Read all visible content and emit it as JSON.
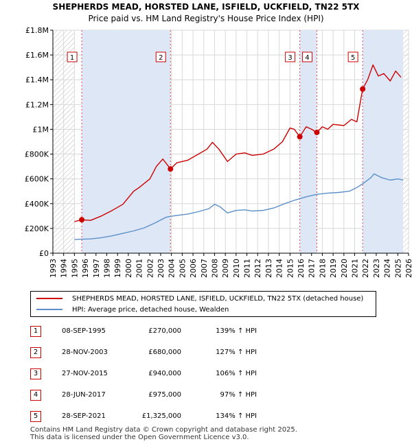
{
  "title": {
    "line1": "SHEPHERDS MEAD, HORSTED LANE, ISFIELD, UCKFIELD, TN22 5TX",
    "line2": "Price paid vs. HM Land Registry's House Price Index (HPI)"
  },
  "chart_data": {
    "type": "line",
    "title": "SHEPHERDS MEAD, HORSTED LANE, ISFIELD, UCKFIELD, TN22 5TX",
    "subtitle": "Price paid vs. HM Land Registry's House Price Index (HPI)",
    "xlim": [
      1993,
      2026
    ],
    "ylim": [
      0,
      1800000
    ],
    "y_ticks": [
      0,
      200000,
      400000,
      600000,
      800000,
      1000000,
      1200000,
      1400000,
      1600000,
      1800000
    ],
    "y_tick_labels": [
      "£0",
      "£200K",
      "£400K",
      "£600K",
      "£800K",
      "£1M",
      "£1.2M",
      "£1.4M",
      "£1.6M",
      "£1.8M"
    ],
    "x_ticks": [
      1993,
      1994,
      1995,
      1996,
      1997,
      1998,
      1999,
      2000,
      2001,
      2002,
      2003,
      2004,
      2005,
      2006,
      2007,
      2008,
      2009,
      2010,
      2011,
      2012,
      2013,
      2014,
      2015,
      2016,
      2017,
      2018,
      2019,
      2020,
      2021,
      2022,
      2023,
      2024,
      2025,
      2026
    ],
    "x_tick_labels": [
      "1993",
      "1994",
      "1995",
      "1996",
      "1997",
      "1998",
      "1999",
      "2000",
      "2001",
      "2002",
      "2003",
      "2004",
      "2005",
      "2006",
      "2007",
      "2008",
      "2009",
      "2010",
      "2011",
      "2012",
      "2013",
      "2014",
      "2015",
      "2016",
      "2017",
      "2018",
      "2019",
      "2020",
      "2021",
      "2022",
      "2023",
      "2024",
      "2025",
      "2026"
    ],
    "grid": true,
    "data_range": [
      1995.0,
      2025.5
    ],
    "series": [
      {
        "name": "SHEPHERDS MEAD, HORSTED LANE, ISFIELD, UCKFIELD, TN22 5TX (detached house)",
        "color": "#cc0000",
        "points": [
          [
            1995.0,
            255000
          ],
          [
            1995.68,
            270000
          ],
          [
            1996.5,
            265000
          ],
          [
            1997.5,
            300000
          ],
          [
            1998.5,
            345000
          ],
          [
            1999.5,
            395000
          ],
          [
            2000.5,
            500000
          ],
          [
            2001.0,
            530000
          ],
          [
            2002.0,
            600000
          ],
          [
            2002.6,
            700000
          ],
          [
            2003.2,
            760000
          ],
          [
            2003.91,
            680000
          ],
          [
            2004.5,
            730000
          ],
          [
            2005.5,
            750000
          ],
          [
            2006.5,
            800000
          ],
          [
            2007.3,
            840000
          ],
          [
            2007.8,
            895000
          ],
          [
            2008.4,
            840000
          ],
          [
            2009.2,
            740000
          ],
          [
            2010.0,
            800000
          ],
          [
            2010.8,
            810000
          ],
          [
            2011.5,
            790000
          ],
          [
            2012.5,
            800000
          ],
          [
            2013.5,
            840000
          ],
          [
            2014.3,
            900000
          ],
          [
            2015.0,
            1010000
          ],
          [
            2015.4,
            1000000
          ],
          [
            2015.91,
            940000
          ],
          [
            2016.5,
            1020000
          ],
          [
            2017.0,
            1000000
          ],
          [
            2017.49,
            975000
          ],
          [
            2018.0,
            1020000
          ],
          [
            2018.5,
            1000000
          ],
          [
            2019.0,
            1040000
          ],
          [
            2020.0,
            1030000
          ],
          [
            2020.7,
            1080000
          ],
          [
            2021.2,
            1060000
          ],
          [
            2021.74,
            1325000
          ],
          [
            2022.2,
            1400000
          ],
          [
            2022.7,
            1520000
          ],
          [
            2023.2,
            1430000
          ],
          [
            2023.7,
            1450000
          ],
          [
            2024.3,
            1390000
          ],
          [
            2024.8,
            1470000
          ],
          [
            2025.3,
            1420000
          ]
        ]
      },
      {
        "name": "HPI: Average price, detached house, Wealden",
        "color": "#5b8fc9",
        "points": [
          [
            1995.0,
            110000
          ],
          [
            1995.68,
            113000
          ],
          [
            1996.5,
            115000
          ],
          [
            1997.5,
            125000
          ],
          [
            1998.5,
            140000
          ],
          [
            1999.5,
            160000
          ],
          [
            2000.5,
            180000
          ],
          [
            2001.5,
            205000
          ],
          [
            2002.5,
            245000
          ],
          [
            2003.5,
            290000
          ],
          [
            2004.5,
            305000
          ],
          [
            2005.5,
            315000
          ],
          [
            2006.5,
            335000
          ],
          [
            2007.5,
            360000
          ],
          [
            2008.0,
            395000
          ],
          [
            2008.5,
            375000
          ],
          [
            2009.2,
            325000
          ],
          [
            2010.0,
            345000
          ],
          [
            2010.8,
            350000
          ],
          [
            2011.5,
            340000
          ],
          [
            2012.5,
            345000
          ],
          [
            2013.5,
            365000
          ],
          [
            2014.5,
            400000
          ],
          [
            2015.5,
            430000
          ],
          [
            2016.5,
            455000
          ],
          [
            2017.5,
            475000
          ],
          [
            2018.5,
            485000
          ],
          [
            2019.5,
            490000
          ],
          [
            2020.5,
            500000
          ],
          [
            2021.2,
            530000
          ],
          [
            2021.74,
            560000
          ],
          [
            2022.5,
            610000
          ],
          [
            2022.8,
            640000
          ],
          [
            2023.5,
            610000
          ],
          [
            2024.3,
            590000
          ],
          [
            2025.0,
            600000
          ],
          [
            2025.5,
            590000
          ]
        ]
      }
    ],
    "sales": [
      {
        "num": "1",
        "x": 1995.68,
        "price": 270000,
        "date": "08-SEP-1995",
        "price_label": "£270,000",
        "hpi_label": "139% ↑ HPI"
      },
      {
        "num": "2",
        "x": 2003.91,
        "price": 680000,
        "date": "28-NOV-2003",
        "price_label": "£680,000",
        "hpi_label": "127% ↑ HPI"
      },
      {
        "num": "3",
        "x": 2015.91,
        "price": 940000,
        "date": "27-NOV-2015",
        "price_label": "£940,000",
        "hpi_label": "106% ↑ HPI"
      },
      {
        "num": "4",
        "x": 2017.49,
        "price": 975000,
        "date": "28-JUN-2017",
        "price_label": "£975,000",
        "hpi_label": "97% ↑ HPI"
      },
      {
        "num": "5",
        "x": 2021.74,
        "price": 1325000,
        "date": "28-SEP-2021",
        "price_label": "£1,325,000",
        "hpi_label": "134% ↑ HPI"
      }
    ],
    "shaded_periods": [
      [
        1995.68,
        2003.91
      ],
      [
        2015.91,
        2017.49
      ],
      [
        2021.74,
        2025.5
      ]
    ]
  },
  "legend": {
    "items": [
      {
        "label": "SHEPHERDS MEAD, HORSTED LANE, ISFIELD, UCKFIELD, TN22 5TX (detached house)",
        "color": "#cc0000"
      },
      {
        "label": "HPI: Average price, detached house, Wealden",
        "color": "#5b8fc9"
      }
    ]
  },
  "footer": {
    "line1": "Contains HM Land Registry data © Crown copyright and database right 2025.",
    "line2": "This data is licensed under the Open Government Licence v3.0."
  },
  "colors": {
    "grid": "#d8d8d8",
    "shade": "#dde7f5",
    "hatch": "#bbbbbb",
    "marker_border": "#cc0000"
  }
}
